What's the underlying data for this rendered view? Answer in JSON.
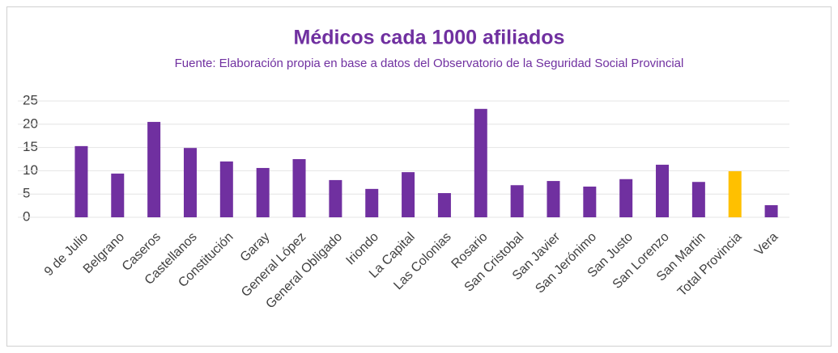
{
  "chart_data": {
    "type": "bar",
    "title": "Médicos cada 1000 afiliados",
    "subtitle": "Fuente: Elaboración propia en base a datos del Observatorio de la Seguridad Social Provincial",
    "categories": [
      "9 de Julio",
      "Belgrano",
      "Caseros",
      "Castellanos",
      "Constitución",
      "Garay",
      "General López",
      "General Obligado",
      "Iriondo",
      "La Capital",
      "Las Colonias",
      "Rosario",
      "San Cristobal",
      "San Javier",
      "San Jerónimo",
      "San Justo",
      "San Lorenzo",
      "San Martin",
      "Total Provincia",
      "Vera"
    ],
    "values": [
      15.3,
      9.4,
      20.5,
      14.9,
      12.0,
      10.6,
      12.5,
      8.0,
      6.1,
      9.7,
      5.2,
      23.3,
      6.9,
      7.8,
      6.6,
      8.2,
      11.3,
      7.6,
      9.9,
      2.6
    ],
    "colors": [
      "#7030a0",
      "#7030a0",
      "#7030a0",
      "#7030a0",
      "#7030a0",
      "#7030a0",
      "#7030a0",
      "#7030a0",
      "#7030a0",
      "#7030a0",
      "#7030a0",
      "#7030a0",
      "#7030a0",
      "#7030a0",
      "#7030a0",
      "#7030a0",
      "#7030a0",
      "#7030a0",
      "#ffc000",
      "#7030a0"
    ],
    "ylim": [
      0,
      25
    ],
    "yticks": [
      0,
      5,
      10,
      15,
      20,
      25
    ],
    "grid": true
  }
}
